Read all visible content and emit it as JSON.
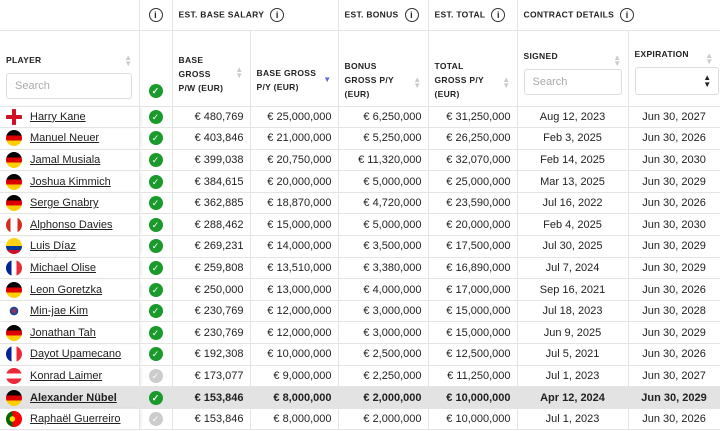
{
  "header": {
    "group_base": "EST. BASE SALARY",
    "group_bonus": "EST. BONUS",
    "group_total": "EST. TOTAL",
    "group_contract": "CONTRACT DETAILS",
    "player": "PLAYER",
    "base_pw": "BASE GROSS P/W (EUR)",
    "base_py": "BASE GROSS P/Y (EUR)",
    "bonus_py": "BONUS GROSS P/Y (EUR)",
    "total_py": "TOTAL GROSS P/Y (EUR)",
    "signed": "SIGNED",
    "expiration": "EXPIRATION",
    "player_search_placeholder": "Search",
    "signed_search_placeholder": "Search",
    "info_glyph": "i",
    "sort_column": "base_py",
    "sort_dir": "desc"
  },
  "colors": {
    "verified": "#1a9a2a",
    "unverified": "#cccccc",
    "highlight": "#e3e3e3",
    "sort_active": "#6b6bd6"
  },
  "rows": [
    {
      "name": "Harry Kane",
      "flag": "england",
      "verified": true,
      "pw": "€ 480,769",
      "py": "€ 25,000,000",
      "bonus": "€ 6,250,000",
      "total": "€ 31,250,000",
      "signed": "Aug 12, 2023",
      "exp": "Jun 30, 2027"
    },
    {
      "name": "Manuel Neuer",
      "flag": "germany",
      "verified": true,
      "pw": "€ 403,846",
      "py": "€ 21,000,000",
      "bonus": "€ 5,250,000",
      "total": "€ 26,250,000",
      "signed": "Feb 3, 2025",
      "exp": "Jun 30, 2026"
    },
    {
      "name": "Jamal Musiala",
      "flag": "germany",
      "verified": true,
      "pw": "€ 399,038",
      "py": "€ 20,750,000",
      "bonus": "€ 11,320,000",
      "total": "€ 32,070,000",
      "signed": "Feb 14, 2025",
      "exp": "Jun 30, 2030"
    },
    {
      "name": "Joshua Kimmich",
      "flag": "germany",
      "verified": true,
      "pw": "€ 384,615",
      "py": "€ 20,000,000",
      "bonus": "€ 5,000,000",
      "total": "€ 25,000,000",
      "signed": "Mar 13, 2025",
      "exp": "Jun 30, 2029"
    },
    {
      "name": "Serge Gnabry",
      "flag": "germany",
      "verified": true,
      "pw": "€ 362,885",
      "py": "€ 18,870,000",
      "bonus": "€ 4,720,000",
      "total": "€ 23,590,000",
      "signed": "Jul 16, 2022",
      "exp": "Jun 30, 2026"
    },
    {
      "name": "Alphonso Davies",
      "flag": "canada",
      "verified": true,
      "pw": "€ 288,462",
      "py": "€ 15,000,000",
      "bonus": "€ 5,000,000",
      "total": "€ 20,000,000",
      "signed": "Feb 4, 2025",
      "exp": "Jun 30, 2030"
    },
    {
      "name": "Luis Díaz",
      "flag": "colombia",
      "verified": true,
      "pw": "€ 269,231",
      "py": "€ 14,000,000",
      "bonus": "€ 3,500,000",
      "total": "€ 17,500,000",
      "signed": "Jul 30, 2025",
      "exp": "Jun 30, 2029"
    },
    {
      "name": "Michael Olise",
      "flag": "france",
      "verified": true,
      "pw": "€ 259,808",
      "py": "€ 13,510,000",
      "bonus": "€ 3,380,000",
      "total": "€ 16,890,000",
      "signed": "Jul 7, 2024",
      "exp": "Jun 30, 2029"
    },
    {
      "name": "Leon Goretzka",
      "flag": "germany",
      "verified": true,
      "pw": "€ 250,000",
      "py": "€ 13,000,000",
      "bonus": "€ 4,000,000",
      "total": "€ 17,000,000",
      "signed": "Sep 16, 2021",
      "exp": "Jun 30, 2026"
    },
    {
      "name": "Min-jae Kim",
      "flag": "korea",
      "verified": true,
      "pw": "€ 230,769",
      "py": "€ 12,000,000",
      "bonus": "€ 3,000,000",
      "total": "€ 15,000,000",
      "signed": "Jul 18, 2023",
      "exp": "Jun 30, 2028"
    },
    {
      "name": "Jonathan Tah",
      "flag": "germany",
      "verified": true,
      "pw": "€ 230,769",
      "py": "€ 12,000,000",
      "bonus": "€ 3,000,000",
      "total": "€ 15,000,000",
      "signed": "Jun 9, 2025",
      "exp": "Jun 30, 2029"
    },
    {
      "name": "Dayot Upamecano",
      "flag": "france",
      "verified": true,
      "pw": "€ 192,308",
      "py": "€ 10,000,000",
      "bonus": "€ 2,500,000",
      "total": "€ 12,500,000",
      "signed": "Jul 5, 2021",
      "exp": "Jun 30, 2026"
    },
    {
      "name": "Konrad Laimer",
      "flag": "austria",
      "verified": false,
      "pw": "€ 173,077",
      "py": "€ 9,000,000",
      "bonus": "€ 2,250,000",
      "total": "€ 11,250,000",
      "signed": "Jul 1, 2023",
      "exp": "Jun 30, 2027"
    },
    {
      "name": "Alexander Nübel",
      "flag": "germany",
      "verified": true,
      "highlighted": true,
      "pw": "€ 153,846",
      "py": "€ 8,000,000",
      "bonus": "€ 2,000,000",
      "total": "€ 10,000,000",
      "signed": "Apr 12, 2024",
      "exp": "Jun 30, 2029"
    },
    {
      "name": "Raphaël Guerreiro",
      "flag": "portugal",
      "verified": false,
      "pw": "€ 153,846",
      "py": "€ 8,000,000",
      "bonus": "€ 2,000,000",
      "total": "€ 10,000,000",
      "signed": "Jul 1, 2023",
      "exp": "Jun 30, 2026"
    }
  ]
}
